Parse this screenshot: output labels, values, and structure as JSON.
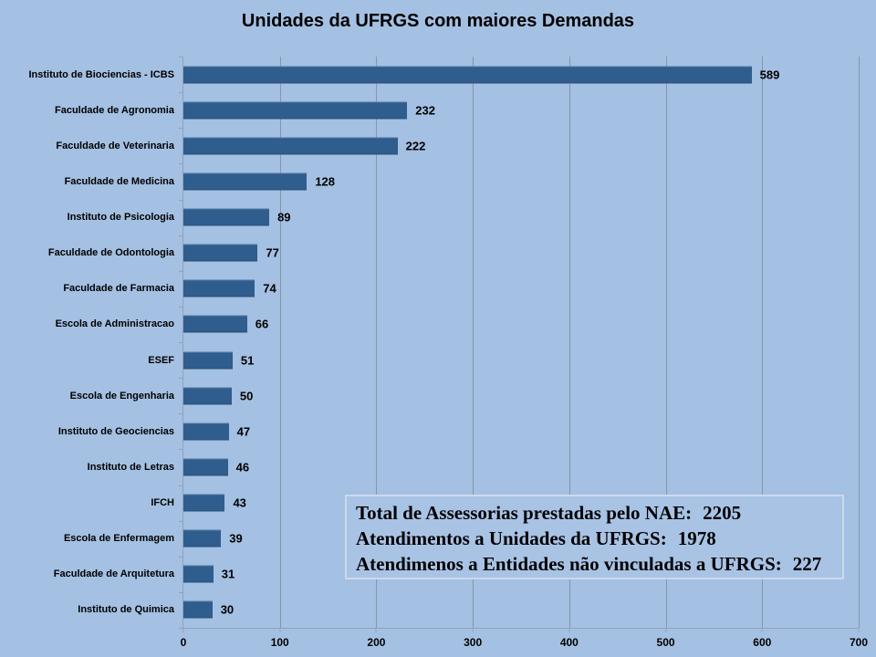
{
  "title": "Unidades da UFRGS com maiores Demandas",
  "chart_data": {
    "type": "bar",
    "orientation": "horizontal",
    "title": "Unidades da UFRGS com maiores Demandas",
    "categories": [
      "Instituto de Biociencias - ICBS",
      "Faculdade de Agronomia",
      "Faculdade de Veterinaria",
      "Faculdade de Medicina",
      "Instituto de Psicologia",
      "Faculdade de Odontologia",
      "Faculdade de Farmacia",
      "Escola de Administracao",
      "ESEF",
      "Escola de Engenharia",
      "Instituto de Geociencias",
      "Instituto de Letras",
      "IFCH",
      "Escola de Enfermagem",
      "Faculdade de Arquitetura",
      "Instituto de Quimica"
    ],
    "values": [
      589,
      232,
      222,
      128,
      89,
      77,
      74,
      66,
      51,
      50,
      47,
      46,
      43,
      39,
      31,
      30
    ],
    "xlabel": "",
    "ylabel": "",
    "xlim": [
      0,
      700
    ],
    "xticks": [
      0,
      100,
      200,
      300,
      400,
      500,
      600,
      700
    ],
    "grid": "vertical",
    "legend": "none",
    "bar_color": "#2f5d8d",
    "background_color": "#a4c0e2",
    "gridline_color": "#8896a9"
  },
  "summary_box": {
    "lines": [
      {
        "label": "Total de Assessorias prestadas pelo NAE:",
        "value": "2205"
      },
      {
        "label": "Atendimentos a Unidades da UFRGS:",
        "value": "1978"
      },
      {
        "label": "Atendimenos a Entidades não vinculadas a UFRGS:",
        "value": "227"
      }
    ]
  }
}
